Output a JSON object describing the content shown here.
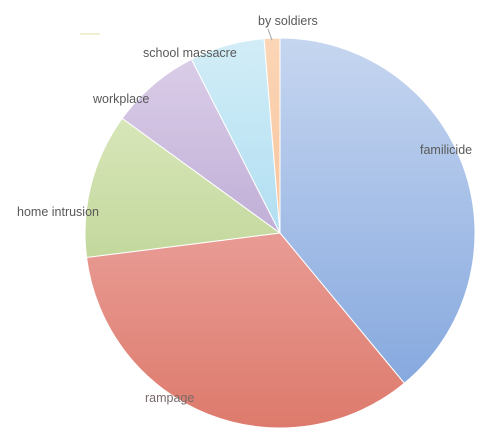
{
  "chart_data": {
    "type": "pie",
    "title": "",
    "categories": [
      "familicide",
      "rampage",
      "home intrusion",
      "workplace",
      "school massacre",
      "by soldiers"
    ],
    "values": [
      39,
      34,
      12,
      7.5,
      6.2,
      1.3
    ],
    "unit": "%",
    "start_angle_deg": 0,
    "direction": "clockwise",
    "colors": [
      {
        "light": "#c6d6f0",
        "dark": "#7ea3dc"
      },
      {
        "light": "#f4bdbd",
        "dark": "#dd7a6c"
      },
      {
        "light": "#e4eec9",
        "dark": "#a9c77a"
      },
      {
        "light": "#ddd1ea",
        "dark": "#a48cc4"
      },
      {
        "light": "#d2edf7",
        "dark": "#8fd0ec"
      },
      {
        "light": "#fbd6b6",
        "dark": "#f4b183"
      }
    ],
    "label_positions": [
      "outside",
      "inside",
      "outside",
      "outside",
      "outside",
      "outside"
    ],
    "legend": "none"
  }
}
